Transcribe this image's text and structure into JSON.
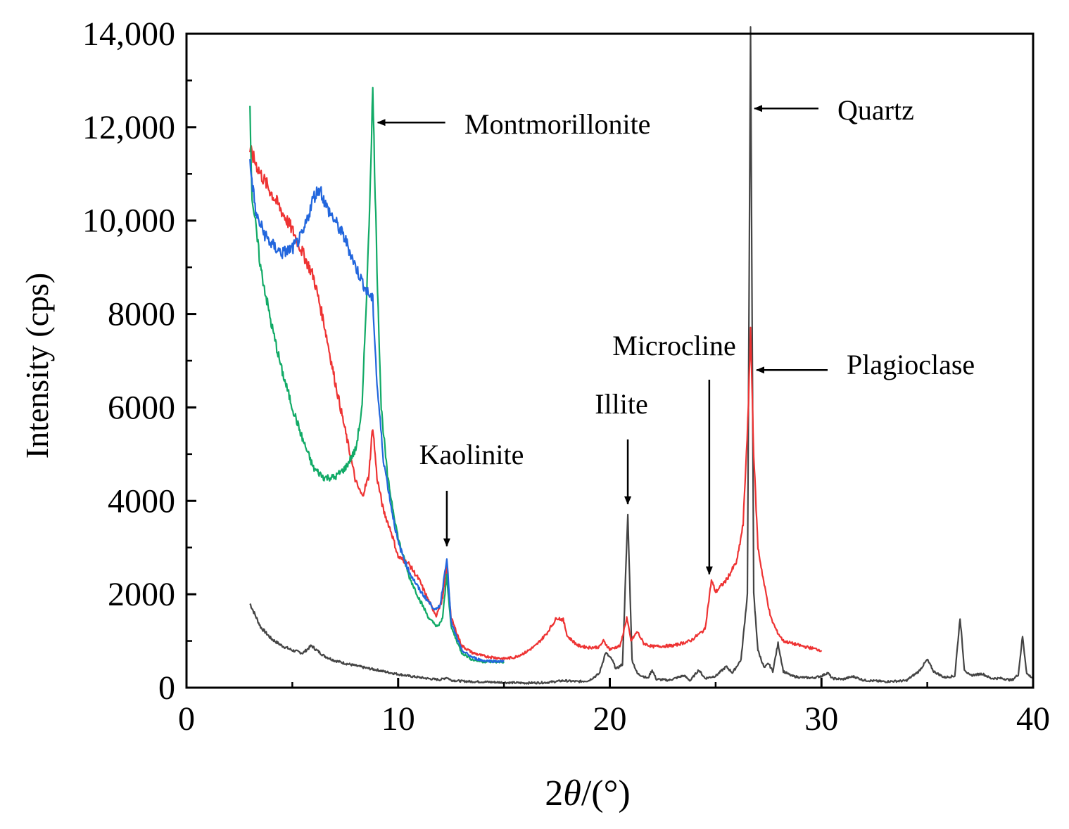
{
  "chart_data": {
    "type": "line",
    "title": "",
    "xlabel": "2θ/(°)",
    "xlabel_prefix": "2",
    "xlabel_theta": "θ",
    "xlabel_suffix": "/(°)",
    "ylabel": "Intensity (cps)",
    "xlim": [
      0,
      40
    ],
    "ylim": [
      0,
      14000
    ],
    "xticks": [
      0,
      10,
      20,
      30,
      40
    ],
    "xtick_labels": [
      "0",
      "10",
      "20",
      "30",
      "40"
    ],
    "yticks": [
      0,
      2000,
      4000,
      6000,
      8000,
      10000,
      12000,
      14000
    ],
    "ytick_labels": [
      "0",
      "2000",
      "4000",
      "6000",
      "8000",
      "10,000",
      "12,000",
      "14,000"
    ],
    "grid": false,
    "series": [
      {
        "name": "black",
        "color": "#444444",
        "points": [
          [
            3,
            1800
          ],
          [
            3.5,
            1300
          ],
          [
            4,
            1050
          ],
          [
            4.5,
            900
          ],
          [
            5,
            800
          ],
          [
            5.5,
            740
          ],
          [
            5.9,
            900
          ],
          [
            6.1,
            820
          ],
          [
            6.5,
            680
          ],
          [
            7,
            580
          ],
          [
            7.5,
            520
          ],
          [
            8,
            470
          ],
          [
            8.5,
            420
          ],
          [
            9,
            380
          ],
          [
            9.5,
            330
          ],
          [
            10,
            290
          ],
          [
            10.5,
            250
          ],
          [
            11,
            220
          ],
          [
            11.5,
            190
          ],
          [
            12,
            170
          ],
          [
            12.3,
            220
          ],
          [
            12.5,
            160
          ],
          [
            13,
            140
          ],
          [
            13.5,
            130
          ],
          [
            14,
            125
          ],
          [
            15,
            110
          ],
          [
            16,
            100
          ],
          [
            17,
            110
          ],
          [
            17.8,
            150
          ],
          [
            18.5,
            130
          ],
          [
            19,
            150
          ],
          [
            19.5,
            300
          ],
          [
            19.8,
            750
          ],
          [
            20.1,
            600
          ],
          [
            20.3,
            400
          ],
          [
            20.6,
            500
          ],
          [
            20.85,
            3700
          ],
          [
            21.05,
            600
          ],
          [
            21.3,
            300
          ],
          [
            21.8,
            200
          ],
          [
            22,
            380
          ],
          [
            22.2,
            180
          ],
          [
            22.8,
            160
          ],
          [
            23.5,
            260
          ],
          [
            23.8,
            150
          ],
          [
            24.2,
            380
          ],
          [
            24.5,
            200
          ],
          [
            25,
            250
          ],
          [
            25.5,
            450
          ],
          [
            25.8,
            320
          ],
          [
            26.2,
            600
          ],
          [
            26.5,
            2000
          ],
          [
            26.65,
            14000
          ],
          [
            26.8,
            2000
          ],
          [
            27,
            800
          ],
          [
            27.3,
            420
          ],
          [
            27.5,
            520
          ],
          [
            27.7,
            350
          ],
          [
            27.95,
            950
          ],
          [
            28.2,
            350
          ],
          [
            28.6,
            250
          ],
          [
            29,
            220
          ],
          [
            29.6,
            210
          ],
          [
            30,
            250
          ],
          [
            30.3,
            320
          ],
          [
            30.5,
            200
          ],
          [
            31,
            180
          ],
          [
            31.5,
            240
          ],
          [
            32,
            160
          ],
          [
            33,
            130
          ],
          [
            34,
            150
          ],
          [
            34.6,
            350
          ],
          [
            35,
            600
          ],
          [
            35.3,
            350
          ],
          [
            35.8,
            220
          ],
          [
            36.3,
            250
          ],
          [
            36.55,
            1500
          ],
          [
            36.75,
            400
          ],
          [
            37,
            260
          ],
          [
            37.6,
            300
          ],
          [
            38,
            200
          ],
          [
            38.5,
            200
          ],
          [
            39,
            160
          ],
          [
            39.3,
            280
          ],
          [
            39.5,
            1100
          ],
          [
            39.7,
            300
          ],
          [
            40,
            200
          ]
        ]
      },
      {
        "name": "red",
        "color": "#ee3333",
        "points": [
          [
            3,
            11500
          ],
          [
            3.5,
            11000
          ],
          [
            4,
            10600
          ],
          [
            4.5,
            10200
          ],
          [
            5,
            9800
          ],
          [
            5.5,
            9300
          ],
          [
            6,
            8800
          ],
          [
            6.5,
            7800
          ],
          [
            7,
            6600
          ],
          [
            7.5,
            5500
          ],
          [
            8,
            4400
          ],
          [
            8.3,
            4100
          ],
          [
            8.6,
            4500
          ],
          [
            8.8,
            5600
          ],
          [
            9,
            4500
          ],
          [
            9.3,
            3800
          ],
          [
            9.7,
            3300
          ],
          [
            10,
            2800
          ],
          [
            10.5,
            2650
          ],
          [
            11,
            2300
          ],
          [
            11.5,
            1800
          ],
          [
            11.8,
            1550
          ],
          [
            12.1,
            1900
          ],
          [
            12.3,
            2600
          ],
          [
            12.5,
            1500
          ],
          [
            13,
            900
          ],
          [
            13.5,
            750
          ],
          [
            14,
            680
          ],
          [
            15,
            620
          ],
          [
            15.5,
            650
          ],
          [
            16,
            750
          ],
          [
            16.5,
            900
          ],
          [
            17,
            1150
          ],
          [
            17.5,
            1500
          ],
          [
            17.8,
            1450
          ],
          [
            18,
            1100
          ],
          [
            18.5,
            900
          ],
          [
            19,
            860
          ],
          [
            19.5,
            870
          ],
          [
            19.7,
            1000
          ],
          [
            20,
            820
          ],
          [
            20.5,
            900
          ],
          [
            20.8,
            1500
          ],
          [
            21,
            1000
          ],
          [
            21.3,
            1200
          ],
          [
            21.6,
            950
          ],
          [
            22,
            880
          ],
          [
            23,
            900
          ],
          [
            23.8,
            1000
          ],
          [
            24.5,
            1250
          ],
          [
            24.8,
            2300
          ],
          [
            25,
            2050
          ],
          [
            25.5,
            2300
          ],
          [
            26,
            2700
          ],
          [
            26.3,
            3500
          ],
          [
            26.55,
            6000
          ],
          [
            26.65,
            7700
          ],
          [
            26.8,
            5000
          ],
          [
            27,
            3000
          ],
          [
            27.3,
            2200
          ],
          [
            27.6,
            1500
          ],
          [
            27.9,
            1200
          ],
          [
            28.2,
            1000
          ],
          [
            29,
            900
          ],
          [
            30,
            800
          ]
        ]
      },
      {
        "name": "green",
        "color": "#11aa66",
        "points": [
          [
            3,
            12300
          ],
          [
            3.1,
            10500
          ],
          [
            3.5,
            9000
          ],
          [
            4,
            7800
          ],
          [
            4.5,
            6800
          ],
          [
            5,
            6000
          ],
          [
            5.5,
            5300
          ],
          [
            6,
            4700
          ],
          [
            6.5,
            4500
          ],
          [
            7,
            4500
          ],
          [
            7.5,
            4700
          ],
          [
            8,
            5100
          ],
          [
            8.3,
            6000
          ],
          [
            8.6,
            9500
          ],
          [
            8.8,
            12800
          ],
          [
            9,
            9000
          ],
          [
            9.2,
            6000
          ],
          [
            9.5,
            4500
          ],
          [
            10,
            3200
          ],
          [
            10.5,
            2400
          ],
          [
            11,
            1900
          ],
          [
            11.5,
            1450
          ],
          [
            11.9,
            1300
          ],
          [
            12.1,
            1500
          ],
          [
            12.3,
            2400
          ],
          [
            12.5,
            1300
          ],
          [
            13,
            750
          ],
          [
            13.5,
            600
          ],
          [
            14,
            560
          ],
          [
            15,
            550
          ]
        ]
      },
      {
        "name": "blue",
        "color": "#2266dd",
        "points": [
          [
            3,
            11200
          ],
          [
            3.3,
            10100
          ],
          [
            3.7,
            9700
          ],
          [
            4,
            9500
          ],
          [
            4.5,
            9300
          ],
          [
            5,
            9400
          ],
          [
            5.5,
            9700
          ],
          [
            6,
            10500
          ],
          [
            6.3,
            10700
          ],
          [
            6.6,
            10300
          ],
          [
            7,
            10000
          ],
          [
            7.5,
            9600
          ],
          [
            8,
            9000
          ],
          [
            8.5,
            8500
          ],
          [
            8.8,
            8300
          ],
          [
            9,
            6500
          ],
          [
            9.3,
            4900
          ],
          [
            9.7,
            3800
          ],
          [
            10,
            3100
          ],
          [
            10.5,
            2500
          ],
          [
            11,
            2100
          ],
          [
            11.5,
            1800
          ],
          [
            11.8,
            1650
          ],
          [
            12,
            1800
          ],
          [
            12.3,
            2800
          ],
          [
            12.5,
            1400
          ],
          [
            13,
            800
          ],
          [
            13.5,
            650
          ],
          [
            14,
            580
          ],
          [
            15,
            560
          ]
        ]
      }
    ],
    "annotations": [
      {
        "label": "Montmorillonite",
        "x": 8.9,
        "y": 12100
      },
      {
        "label": "Quartz",
        "x": 26.7,
        "y": 12400
      },
      {
        "label": "Plagioclase",
        "x": 26.8,
        "y": 6800
      },
      {
        "label": "Microcline",
        "x": 24.7,
        "y": 2400
      },
      {
        "label": "Illite",
        "x": 20.85,
        "y": 3900
      },
      {
        "label": "Kaolinite",
        "x": 12.3,
        "y": 3000
      }
    ]
  }
}
